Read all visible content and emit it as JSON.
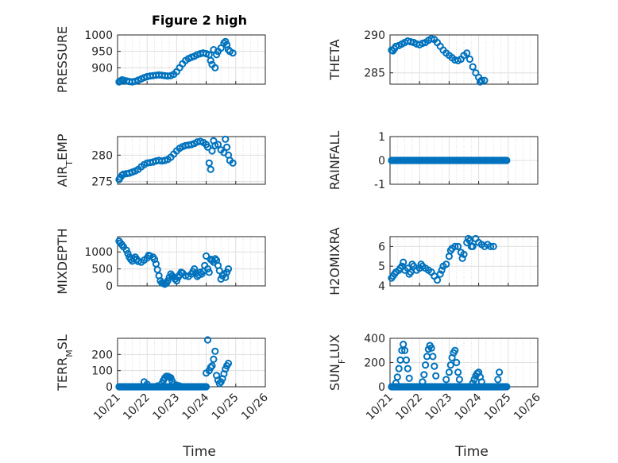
{
  "title": "Figure 2 high",
  "xlabel": "Time",
  "chart_data": [
    {
      "type": "scatter",
      "panel": "PRESSURE",
      "ylabel": "PRESSURE",
      "ylim": [
        850,
        1000
      ],
      "yticks": [
        900,
        950,
        1000
      ],
      "xlim": [
        0,
        5
      ],
      "xticks_labels": [
        "10/21",
        "10/22",
        "10/23",
        "10/24",
        "10/25",
        "10/26"
      ],
      "points": [
        [
          0.05,
          857
        ],
        [
          0.1,
          860
        ],
        [
          0.15,
          863
        ],
        [
          0.2,
          862
        ],
        [
          0.3,
          860
        ],
        [
          0.4,
          858
        ],
        [
          0.5,
          857
        ],
        [
          0.6,
          859
        ],
        [
          0.7,
          862
        ],
        [
          0.8,
          866
        ],
        [
          0.9,
          870
        ],
        [
          1.0,
          873
        ],
        [
          1.1,
          875
        ],
        [
          1.2,
          876
        ],
        [
          1.3,
          877
        ],
        [
          1.4,
          878
        ],
        [
          1.5,
          877
        ],
        [
          1.6,
          876
        ],
        [
          1.7,
          875
        ],
        [
          1.8,
          876
        ],
        [
          1.9,
          880
        ],
        [
          2.0,
          888
        ],
        [
          2.1,
          900
        ],
        [
          2.2,
          912
        ],
        [
          2.3,
          922
        ],
        [
          2.4,
          928
        ],
        [
          2.5,
          932
        ],
        [
          2.6,
          935
        ],
        [
          2.7,
          940
        ],
        [
          2.8,
          943
        ],
        [
          2.9,
          945
        ],
        [
          3.0,
          943
        ],
        [
          3.1,
          940
        ],
        [
          3.15,
          922
        ],
        [
          3.2,
          910
        ],
        [
          3.25,
          955
        ],
        [
          3.3,
          900
        ],
        [
          3.35,
          940
        ],
        [
          3.4,
          950
        ],
        [
          3.5,
          960
        ],
        [
          3.6,
          975
        ],
        [
          3.65,
          980
        ],
        [
          3.7,
          970
        ],
        [
          3.75,
          955
        ],
        [
          3.8,
          950
        ],
        [
          3.9,
          945
        ]
      ]
    },
    {
      "type": "scatter",
      "panel": "THETA",
      "ylabel": "THETA",
      "ylim": [
        283.5,
        290
      ],
      "yticks": [
        285,
        290
      ],
      "xlim": [
        0,
        5
      ],
      "xticks_labels": [
        "10/21",
        "10/22",
        "10/23",
        "10/24",
        "10/25",
        "10/26"
      ],
      "points": [
        [
          0.05,
          288.0
        ],
        [
          0.1,
          287.9
        ],
        [
          0.15,
          288.2
        ],
        [
          0.2,
          288.5
        ],
        [
          0.3,
          288.6
        ],
        [
          0.4,
          288.8
        ],
        [
          0.5,
          289.0
        ],
        [
          0.6,
          289.2
        ],
        [
          0.7,
          289.1
        ],
        [
          0.8,
          289.0
        ],
        [
          0.9,
          288.8
        ],
        [
          1.0,
          288.7
        ],
        [
          1.1,
          288.9
        ],
        [
          1.2,
          289.0
        ],
        [
          1.3,
          289.3
        ],
        [
          1.4,
          289.5
        ],
        [
          1.5,
          289.4
        ],
        [
          1.6,
          289.0
        ],
        [
          1.7,
          288.5
        ],
        [
          1.8,
          288.0
        ],
        [
          1.9,
          287.6
        ],
        [
          2.0,
          287.3
        ],
        [
          2.1,
          287.0
        ],
        [
          2.2,
          286.7
        ],
        [
          2.3,
          286.6
        ],
        [
          2.4,
          286.8
        ],
        [
          2.5,
          287.3
        ],
        [
          2.6,
          287.6
        ],
        [
          2.7,
          286.8
        ],
        [
          2.8,
          285.8
        ],
        [
          2.9,
          285.0
        ],
        [
          3.0,
          284.4
        ],
        [
          3.05,
          283.8
        ],
        [
          3.1,
          284.0
        ],
        [
          3.2,
          284.0
        ]
      ]
    },
    {
      "type": "scatter",
      "panel": "AIR_TEMP",
      "ylabel": "AIR_TEMP",
      "ylim": [
        274.5,
        283.5
      ],
      "yticks": [
        275,
        280
      ],
      "xlim": [
        0,
        5
      ],
      "xticks_labels": [
        "10/21",
        "10/22",
        "10/23",
        "10/24",
        "10/25",
        "10/26"
      ],
      "points": [
        [
          0.05,
          275.4
        ],
        [
          0.1,
          275.8
        ],
        [
          0.15,
          276.2
        ],
        [
          0.2,
          276.4
        ],
        [
          0.3,
          276.5
        ],
        [
          0.4,
          276.6
        ],
        [
          0.5,
          276.8
        ],
        [
          0.6,
          277.0
        ],
        [
          0.7,
          277.3
        ],
        [
          0.8,
          277.8
        ],
        [
          0.9,
          278.2
        ],
        [
          1.0,
          278.5
        ],
        [
          1.1,
          278.6
        ],
        [
          1.2,
          278.7
        ],
        [
          1.3,
          278.9
        ],
        [
          1.4,
          279.0
        ],
        [
          1.5,
          278.9
        ],
        [
          1.6,
          279.0
        ],
        [
          1.7,
          279.2
        ],
        [
          1.8,
          279.6
        ],
        [
          1.9,
          280.2
        ],
        [
          2.0,
          280.8
        ],
        [
          2.1,
          281.3
        ],
        [
          2.2,
          281.6
        ],
        [
          2.3,
          281.8
        ],
        [
          2.4,
          281.9
        ],
        [
          2.5,
          282.0
        ],
        [
          2.6,
          282.2
        ],
        [
          2.7,
          282.5
        ],
        [
          2.8,
          282.6
        ],
        [
          2.9,
          282.4
        ],
        [
          3.0,
          282.0
        ],
        [
          3.05,
          281.5
        ],
        [
          3.1,
          278.5
        ],
        [
          3.15,
          277.3
        ],
        [
          3.2,
          280.8
        ],
        [
          3.25,
          282.7
        ],
        [
          3.3,
          281.8
        ],
        [
          3.4,
          282.0
        ],
        [
          3.5,
          281.0
        ],
        [
          3.6,
          280.5
        ],
        [
          3.65,
          283.0
        ],
        [
          3.7,
          281.5
        ],
        [
          3.75,
          280.0
        ],
        [
          3.8,
          279.0
        ],
        [
          3.9,
          278.5
        ]
      ]
    },
    {
      "type": "scatter",
      "panel": "RAINFALL",
      "ylabel": "RAINFALL",
      "ylim": [
        -1,
        1
      ],
      "yticks": [
        -1,
        0,
        1
      ],
      "xlim": [
        0,
        5
      ],
      "xticks_labels": [
        "10/21",
        "10/22",
        "10/23",
        "10/24",
        "10/25",
        "10/26"
      ],
      "points_constant": {
        "x_start": 0.05,
        "x_end": 3.95,
        "step": 0.05,
        "y": 0
      }
    },
    {
      "type": "scatter",
      "panel": "MIXDEPTH",
      "ylabel": "MIXDEPTH",
      "ylim": [
        0,
        1450
      ],
      "yticks": [
        0,
        500,
        1000
      ],
      "xlim": [
        0,
        5
      ],
      "xticks_labels": [
        "10/21",
        "10/22",
        "10/23",
        "10/24",
        "10/25",
        "10/26"
      ],
      "points": [
        [
          0.05,
          1320
        ],
        [
          0.1,
          1260
        ],
        [
          0.15,
          1210
        ],
        [
          0.2,
          1150
        ],
        [
          0.3,
          1050
        ],
        [
          0.35,
          950
        ],
        [
          0.4,
          850
        ],
        [
          0.45,
          780
        ],
        [
          0.5,
          730
        ],
        [
          0.55,
          800
        ],
        [
          0.6,
          850
        ],
        [
          0.65,
          780
        ],
        [
          0.7,
          720
        ],
        [
          0.8,
          700
        ],
        [
          0.9,
          760
        ],
        [
          1.0,
          820
        ],
        [
          1.05,
          900
        ],
        [
          1.1,
          880
        ],
        [
          1.2,
          850
        ],
        [
          1.25,
          780
        ],
        [
          1.3,
          650
        ],
        [
          1.35,
          480
        ],
        [
          1.4,
          300
        ],
        [
          1.45,
          150
        ],
        [
          1.5,
          90
        ],
        [
          1.55,
          70
        ],
        [
          1.6,
          50
        ],
        [
          1.65,
          80
        ],
        [
          1.7,
          150
        ],
        [
          1.75,
          250
        ],
        [
          1.8,
          350
        ],
        [
          1.85,
          300
        ],
        [
          1.9,
          260
        ],
        [
          1.95,
          200
        ],
        [
          2.0,
          150
        ],
        [
          2.05,
          250
        ],
        [
          2.1,
          320
        ],
        [
          2.15,
          400
        ],
        [
          2.2,
          380
        ],
        [
          2.3,
          300
        ],
        [
          2.4,
          280
        ],
        [
          2.5,
          350
        ],
        [
          2.55,
          420
        ],
        [
          2.6,
          500
        ],
        [
          2.65,
          380
        ],
        [
          2.7,
          280
        ],
        [
          2.75,
          320
        ],
        [
          2.8,
          400
        ],
        [
          2.85,
          350
        ],
        [
          2.9,
          430
        ],
        [
          2.95,
          600
        ],
        [
          3.0,
          880
        ],
        [
          3.05,
          500
        ],
        [
          3.1,
          400
        ],
        [
          3.15,
          780
        ],
        [
          3.2,
          750
        ],
        [
          3.25,
          700
        ],
        [
          3.3,
          800
        ],
        [
          3.35,
          750
        ],
        [
          3.4,
          600
        ],
        [
          3.45,
          450
        ],
        [
          3.5,
          200
        ],
        [
          3.55,
          300
        ],
        [
          3.6,
          350
        ],
        [
          3.65,
          250
        ],
        [
          3.7,
          400
        ],
        [
          3.75,
          500
        ]
      ]
    },
    {
      "type": "scatter",
      "panel": "H2OMIXRA",
      "ylabel": "H2OMIXRA",
      "ylim": [
        4,
        6.5
      ],
      "yticks": [
        4,
        5,
        6
      ],
      "xlim": [
        0,
        5
      ],
      "xticks_labels": [
        "10/21",
        "10/22",
        "10/23",
        "10/24",
        "10/25",
        "10/26"
      ],
      "points": [
        [
          0.05,
          4.4
        ],
        [
          0.1,
          4.5
        ],
        [
          0.15,
          4.6
        ],
        [
          0.2,
          4.7
        ],
        [
          0.3,
          4.8
        ],
        [
          0.35,
          4.9
        ],
        [
          0.4,
          5.0
        ],
        [
          0.45,
          5.2
        ],
        [
          0.5,
          4.8
        ],
        [
          0.6,
          4.9
        ],
        [
          0.65,
          4.6
        ],
        [
          0.7,
          4.7
        ],
        [
          0.75,
          5.1
        ],
        [
          0.8,
          5.0
        ],
        [
          0.9,
          4.8
        ],
        [
          1.0,
          4.9
        ],
        [
          1.05,
          5.1
        ],
        [
          1.1,
          5.0
        ],
        [
          1.2,
          4.9
        ],
        [
          1.3,
          4.8
        ],
        [
          1.4,
          4.7
        ],
        [
          1.5,
          4.5
        ],
        [
          1.6,
          4.3
        ],
        [
          1.7,
          4.6
        ],
        [
          1.75,
          4.8
        ],
        [
          1.8,
          5.0
        ],
        [
          1.9,
          5.1
        ],
        [
          2.0,
          5.5
        ],
        [
          2.05,
          5.8
        ],
        [
          2.1,
          5.9
        ],
        [
          2.2,
          6.0
        ],
        [
          2.3,
          6.0
        ],
        [
          2.4,
          5.7
        ],
        [
          2.45,
          5.4
        ],
        [
          2.5,
          5.6
        ],
        [
          2.6,
          6.2
        ],
        [
          2.65,
          6.4
        ],
        [
          2.7,
          6.3
        ],
        [
          2.75,
          6.0
        ],
        [
          2.8,
          6.0
        ],
        [
          2.9,
          6.4
        ],
        [
          3.0,
          6.2
        ],
        [
          3.1,
          6.1
        ],
        [
          3.2,
          6.0
        ],
        [
          3.3,
          6.1
        ],
        [
          3.4,
          6.0
        ],
        [
          3.5,
          6.0
        ]
      ]
    },
    {
      "type": "scatter",
      "panel": "TERR_MSL",
      "ylabel": "TERR_MSL",
      "ylim": [
        0,
        300
      ],
      "yticks": [
        0,
        100,
        200
      ],
      "xlim": [
        0,
        5
      ],
      "xticks_labels": [
        "10/21",
        "10/22",
        "10/23",
        "10/24",
        "10/25",
        "10/26"
      ],
      "points_constant": {
        "x_start": 0.05,
        "x_end": 3.0,
        "step": 0.05,
        "y": 0
      },
      "points": [
        [
          0.9,
          30
        ],
        [
          1.0,
          15
        ],
        [
          1.35,
          5
        ],
        [
          1.5,
          20
        ],
        [
          1.55,
          40
        ],
        [
          1.6,
          55
        ],
        [
          1.65,
          65
        ],
        [
          1.7,
          65
        ],
        [
          1.75,
          60
        ],
        [
          1.8,
          55
        ],
        [
          1.85,
          35
        ],
        [
          1.9,
          15
        ],
        [
          2.0,
          10
        ],
        [
          2.1,
          5
        ],
        [
          3.0,
          85
        ],
        [
          3.05,
          290
        ],
        [
          3.1,
          100
        ],
        [
          3.15,
          120
        ],
        [
          3.2,
          130
        ],
        [
          3.25,
          170
        ],
        [
          3.3,
          220
        ],
        [
          3.35,
          70
        ],
        [
          3.4,
          40
        ],
        [
          3.45,
          20
        ],
        [
          3.5,
          30
        ],
        [
          3.55,
          50
        ],
        [
          3.6,
          80
        ],
        [
          3.65,
          110
        ],
        [
          3.7,
          130
        ],
        [
          3.75,
          145
        ]
      ]
    },
    {
      "type": "scatter",
      "panel": "SUN_FLUX",
      "ylabel": "SUN_FLUX",
      "ylim": [
        0,
        400
      ],
      "yticks": [
        0,
        200,
        400
      ],
      "xlim": [
        0,
        5
      ],
      "xticks_labels": [
        "10/21",
        "10/22",
        "10/23",
        "10/24",
        "10/25",
        "10/26"
      ],
      "points_constant": {
        "x_start": 0.05,
        "x_end": 3.95,
        "step": 0.05,
        "y": 0
      },
      "points": [
        [
          0.2,
          30
        ],
        [
          0.25,
          80
        ],
        [
          0.3,
          150
        ],
        [
          0.35,
          220
        ],
        [
          0.4,
          300
        ],
        [
          0.45,
          350
        ],
        [
          0.5,
          300
        ],
        [
          0.55,
          220
        ],
        [
          0.6,
          150
        ],
        [
          0.65,
          70
        ],
        [
          1.1,
          40
        ],
        [
          1.15,
          100
        ],
        [
          1.2,
          180
        ],
        [
          1.25,
          250
        ],
        [
          1.3,
          310
        ],
        [
          1.35,
          340
        ],
        [
          1.4,
          320
        ],
        [
          1.45,
          250
        ],
        [
          1.5,
          170
        ],
        [
          1.55,
          90
        ],
        [
          1.9,
          60
        ],
        [
          2.0,
          120
        ],
        [
          2.05,
          180
        ],
        [
          2.1,
          240
        ],
        [
          2.15,
          280
        ],
        [
          2.2,
          300
        ],
        [
          2.25,
          200
        ],
        [
          2.3,
          120
        ],
        [
          2.35,
          60
        ],
        [
          2.8,
          30
        ],
        [
          2.85,
          60
        ],
        [
          2.9,
          90
        ],
        [
          2.95,
          110
        ],
        [
          3.0,
          120
        ],
        [
          3.05,
          80
        ],
        [
          3.1,
          40
        ],
        [
          3.65,
          60
        ],
        [
          3.7,
          120
        ]
      ]
    }
  ]
}
